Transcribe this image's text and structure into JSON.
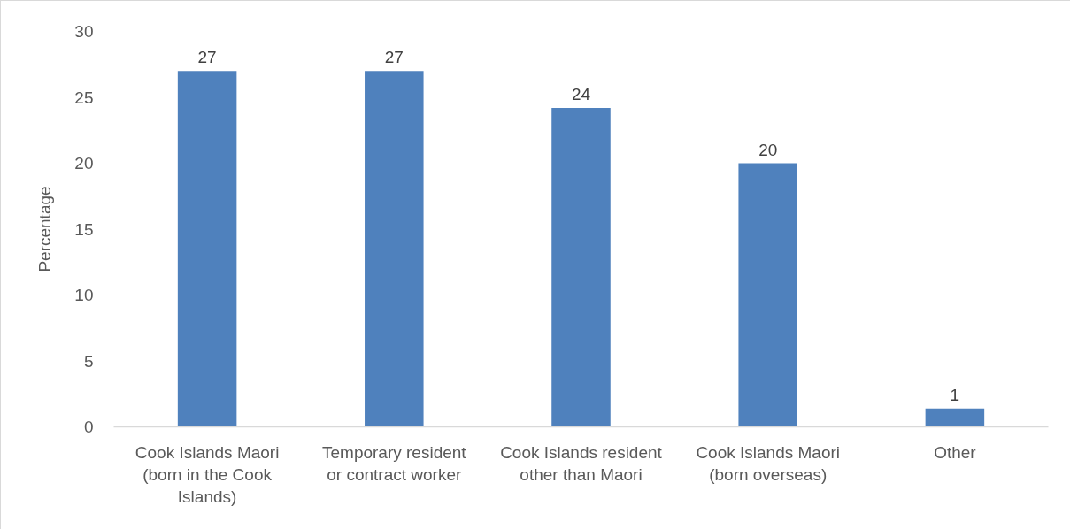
{
  "chart_data": {
    "type": "bar",
    "ylabel": "Percentage",
    "categories": [
      "Cook Islands Maori (born in the Cook Islands)",
      "Temporary resident or contract worker",
      "Cook Islands resident other than Maori",
      "Cook Islands Maori (born overseas)",
      "Other"
    ],
    "values": [
      27,
      27,
      24.2,
      20,
      1.4
    ],
    "value_labels": [
      "27",
      "27",
      "24",
      "20",
      "1"
    ],
    "color": "#4f81bd",
    "ylim": [
      0,
      30
    ],
    "yticks": [
      0,
      5,
      10,
      15,
      20,
      25,
      30
    ]
  }
}
